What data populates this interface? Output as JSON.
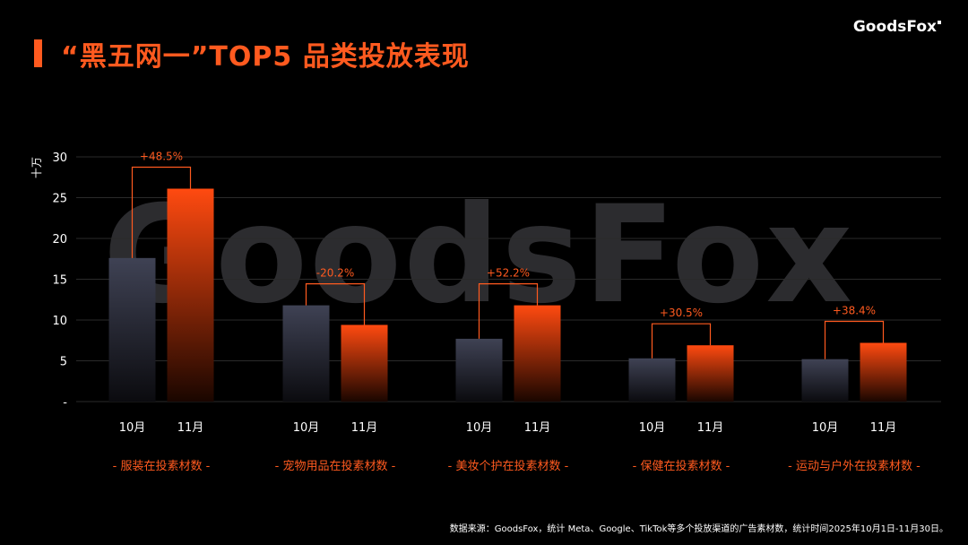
{
  "header": {
    "title": "“黑五网一”TOP5 品类投放表现",
    "brand": "GoodsFox"
  },
  "watermark": "GoodsFox",
  "footer": {
    "source": "数据来源：GoodsFox，统计 Meta、Google、TikTok等多个投放渠道的广告素材数，统计时间2025年10月1日-11月30日。"
  },
  "colors": {
    "accent": "#ff5a1f",
    "bar_oct": "#3b3e4e",
    "bar_nov": "#ff4a10"
  },
  "chart_data": {
    "type": "bar",
    "ylabel": "十万",
    "ylim": [
      0,
      30
    ],
    "yticks": [
      "-",
      "5",
      "10",
      "15",
      "20",
      "25",
      "30"
    ],
    "series_names": [
      "10月",
      "11月"
    ],
    "groups": [
      {
        "category": "- 服装在投素材数 -",
        "values": [
          17.6,
          26.1
        ],
        "change": "+48.5%"
      },
      {
        "category": "- 宠物用品在投素材数 -",
        "values": [
          11.8,
          9.4
        ],
        "change": "-20.2%"
      },
      {
        "category": "- 美妆个护在投素材数 -",
        "values": [
          7.7,
          11.8
        ],
        "change": "+52.2%"
      },
      {
        "category": "- 保健在投素材数 -",
        "values": [
          5.3,
          6.9
        ],
        "change": "+30.5%"
      },
      {
        "category": "- 运动与户外在投素材数 -",
        "values": [
          5.2,
          7.2
        ],
        "change": "+38.4%"
      }
    ]
  }
}
